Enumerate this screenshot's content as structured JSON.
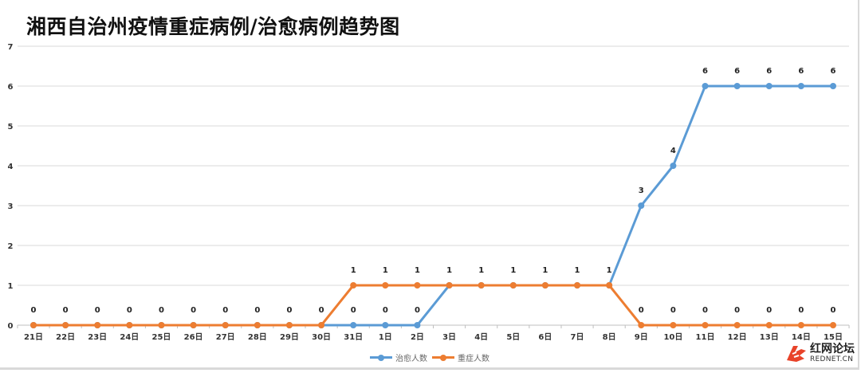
{
  "chart_data": {
    "type": "line",
    "title": "湘西自治州疫情重症病例/治愈病例趋势图",
    "xlabel": "",
    "ylabel": "",
    "ylim": [
      0,
      7
    ],
    "yticks": [
      0,
      1,
      2,
      3,
      4,
      5,
      6,
      7
    ],
    "grid": true,
    "legend_position": "bottom",
    "categories": [
      "21日",
      "22日",
      "23日",
      "24日",
      "25日",
      "26日",
      "27日",
      "28日",
      "29日",
      "30日",
      "31日",
      "1日",
      "2日",
      "3日",
      "4日",
      "5日",
      "6日",
      "7日",
      "8日",
      "9日",
      "10日",
      "11日",
      "12日",
      "13日",
      "14日",
      "15日"
    ],
    "series": [
      {
        "name": "治愈人数",
        "color": "#5b9bd5",
        "values": [
          0,
          0,
          0,
          0,
          0,
          0,
          0,
          0,
          0,
          0,
          0,
          0,
          0,
          1,
          1,
          1,
          1,
          1,
          1,
          3,
          4,
          6,
          6,
          6,
          6,
          6
        ],
        "labels_shown": [
          false,
          false,
          false,
          false,
          false,
          false,
          false,
          false,
          false,
          false,
          true,
          true,
          true,
          false,
          false,
          false,
          false,
          false,
          false,
          true,
          true,
          true,
          true,
          true,
          true,
          true
        ]
      },
      {
        "name": "重症人数",
        "color": "#ed7d31",
        "values": [
          0,
          0,
          0,
          0,
          0,
          0,
          0,
          0,
          0,
          0,
          1,
          1,
          1,
          1,
          1,
          1,
          1,
          1,
          1,
          0,
          0,
          0,
          0,
          0,
          0,
          0
        ],
        "labels_shown": [
          true,
          true,
          true,
          true,
          true,
          true,
          true,
          true,
          true,
          true,
          true,
          true,
          true,
          true,
          true,
          true,
          true,
          true,
          true,
          true,
          true,
          true,
          true,
          true,
          true,
          true
        ]
      }
    ]
  },
  "legend": {
    "items": [
      {
        "label": "治愈人数",
        "color": "#5b9bd5"
      },
      {
        "label": "重症人数",
        "color": "#ed7d31"
      }
    ]
  },
  "watermark": {
    "cn": "红网论坛",
    "en": "REDNET.CN",
    "color": "#e8432a"
  }
}
